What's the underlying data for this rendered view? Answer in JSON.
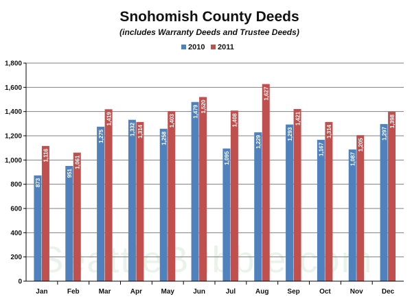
{
  "chart_data": {
    "type": "bar",
    "title": "Snohomish County Deeds",
    "subtitle": "(includes Warranty Deeds and Trustee Deeds)",
    "categories": [
      "Jan",
      "Feb",
      "Mar",
      "Apr",
      "May",
      "Jun",
      "Jul",
      "Aug",
      "Sep",
      "Oct",
      "Nov",
      "Dec"
    ],
    "series": [
      {
        "name": "2010",
        "color": "#4f81bd",
        "values": [
          873,
          951,
          1275,
          1332,
          1258,
          1479,
          1095,
          1229,
          1293,
          1167,
          1087,
          1297
        ],
        "labels": [
          "873",
          "951",
          "1,275",
          "1,332",
          "1,258",
          "1,479",
          "1,095",
          "1,229",
          "1,293",
          "1,167",
          "1,087",
          "1,297"
        ]
      },
      {
        "name": "2011",
        "color": "#c0504d",
        "values": [
          1116,
          1061,
          1419,
          1314,
          1403,
          1520,
          1408,
          1627,
          1421,
          1314,
          1205,
          1398
        ],
        "labels": [
          "1,116",
          "1,061",
          "1,419",
          "1,314",
          "1,403",
          "1,520",
          "1,408",
          "1,627",
          "1,421",
          "1,314",
          "1,205",
          "1,398"
        ]
      }
    ],
    "ylim": [
      0,
      1800
    ],
    "yticks": [
      0,
      200,
      400,
      600,
      800,
      1000,
      1200,
      1400,
      1600,
      1800
    ],
    "ytick_labels": [
      "0",
      "200",
      "400",
      "600",
      "800",
      "1,000",
      "1,200",
      "1,400",
      "1,600",
      "1,800"
    ],
    "xlabel": "",
    "ylabel": "",
    "legend_position": "top-center",
    "grid": true,
    "grid_color": "#7f7f7f"
  },
  "watermark": "SeattleBubble.com"
}
